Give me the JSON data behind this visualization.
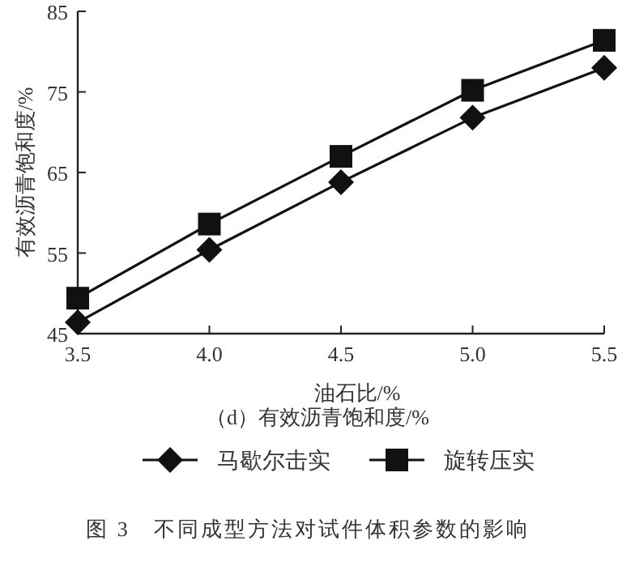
{
  "chart_data": {
    "type": "line",
    "xlabel": "油石比/%",
    "ylabel": "有效沥青饱和度/%",
    "annotations": [
      "（d）有效沥青饱和度/%",
      "图 3　不同成型方法对试件体积参数的影响"
    ],
    "x": [
      3.5,
      4.0,
      4.5,
      5.0,
      5.5
    ],
    "series": [
      {
        "name": "马歇尔击实",
        "color": "#111111",
        "marker": "diamond",
        "values": [
          46.4,
          55.4,
          63.8,
          71.8,
          78.0
        ]
      },
      {
        "name": "旋转压实",
        "color": "#111111",
        "marker": "square",
        "values": [
          49.4,
          58.6,
          67.0,
          75.2,
          81.4
        ]
      }
    ],
    "xlim": [
      3.5,
      5.5
    ],
    "xticks": [
      {
        "value": 3.5,
        "label": "3.5"
      },
      {
        "value": 4.0,
        "label": "4.0"
      },
      {
        "value": 4.5,
        "label": "4.5"
      },
      {
        "value": 5.0,
        "label": "5.0"
      },
      {
        "value": 5.5,
        "label": "5.5"
      }
    ],
    "ylim": [
      45,
      85
    ],
    "yticks": [
      45,
      55,
      65,
      75,
      85
    ],
    "grid": false,
    "legend": "bottom",
    "line_style": "solid"
  }
}
